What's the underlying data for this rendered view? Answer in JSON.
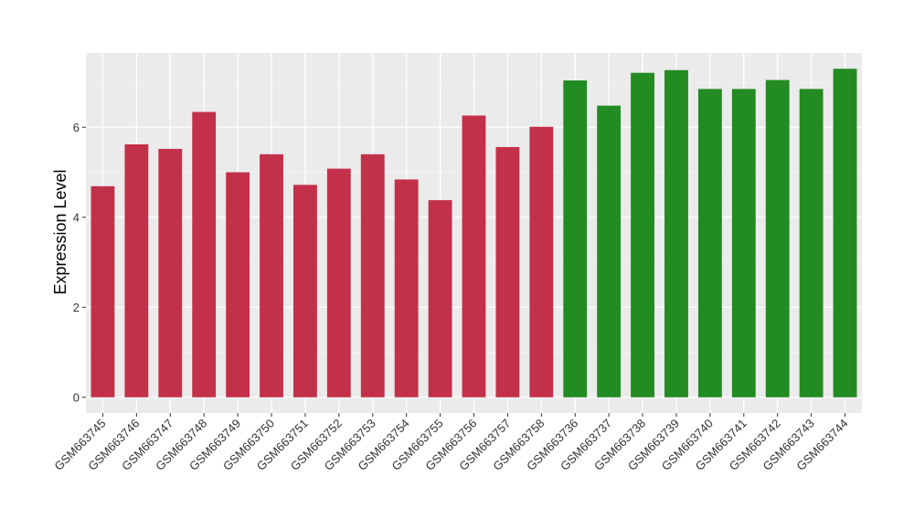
{
  "chart_data": {
    "type": "bar",
    "title": "",
    "xlabel": "",
    "ylabel": "Expression Level",
    "ylim": [
      -0.35,
      7.65
    ],
    "yticks": [
      0,
      2,
      4,
      6
    ],
    "grid": true,
    "legend": "none",
    "categories": [
      "GSM663745",
      "GSM663746",
      "GSM663747",
      "GSM663748",
      "GSM663749",
      "GSM663750",
      "GSM663751",
      "GSM663752",
      "GSM663753",
      "GSM663754",
      "GSM663755",
      "GSM663756",
      "GSM663757",
      "GSM663758",
      "GSM663736",
      "GSM663737",
      "GSM663738",
      "GSM663739",
      "GSM663740",
      "GSM663741",
      "GSM663742",
      "GSM663743",
      "GSM663744"
    ],
    "values": [
      4.69,
      5.62,
      5.52,
      6.34,
      5.0,
      5.4,
      4.72,
      5.08,
      5.4,
      4.84,
      4.38,
      6.26,
      5.56,
      6.01,
      7.04,
      6.48,
      7.21,
      7.27,
      6.85,
      6.85,
      7.05,
      6.85,
      7.3
    ],
    "groups": [
      "red",
      "red",
      "red",
      "red",
      "red",
      "red",
      "red",
      "red",
      "red",
      "red",
      "red",
      "red",
      "red",
      "red",
      "green",
      "green",
      "green",
      "green",
      "green",
      "green",
      "green",
      "green",
      "green"
    ],
    "colors": {
      "red": "#C3304A",
      "green": "#228B22",
      "panel": "#EBEBEB",
      "grid_major": "#FFFFFF",
      "grid_minor": "#F5F5F5"
    }
  }
}
